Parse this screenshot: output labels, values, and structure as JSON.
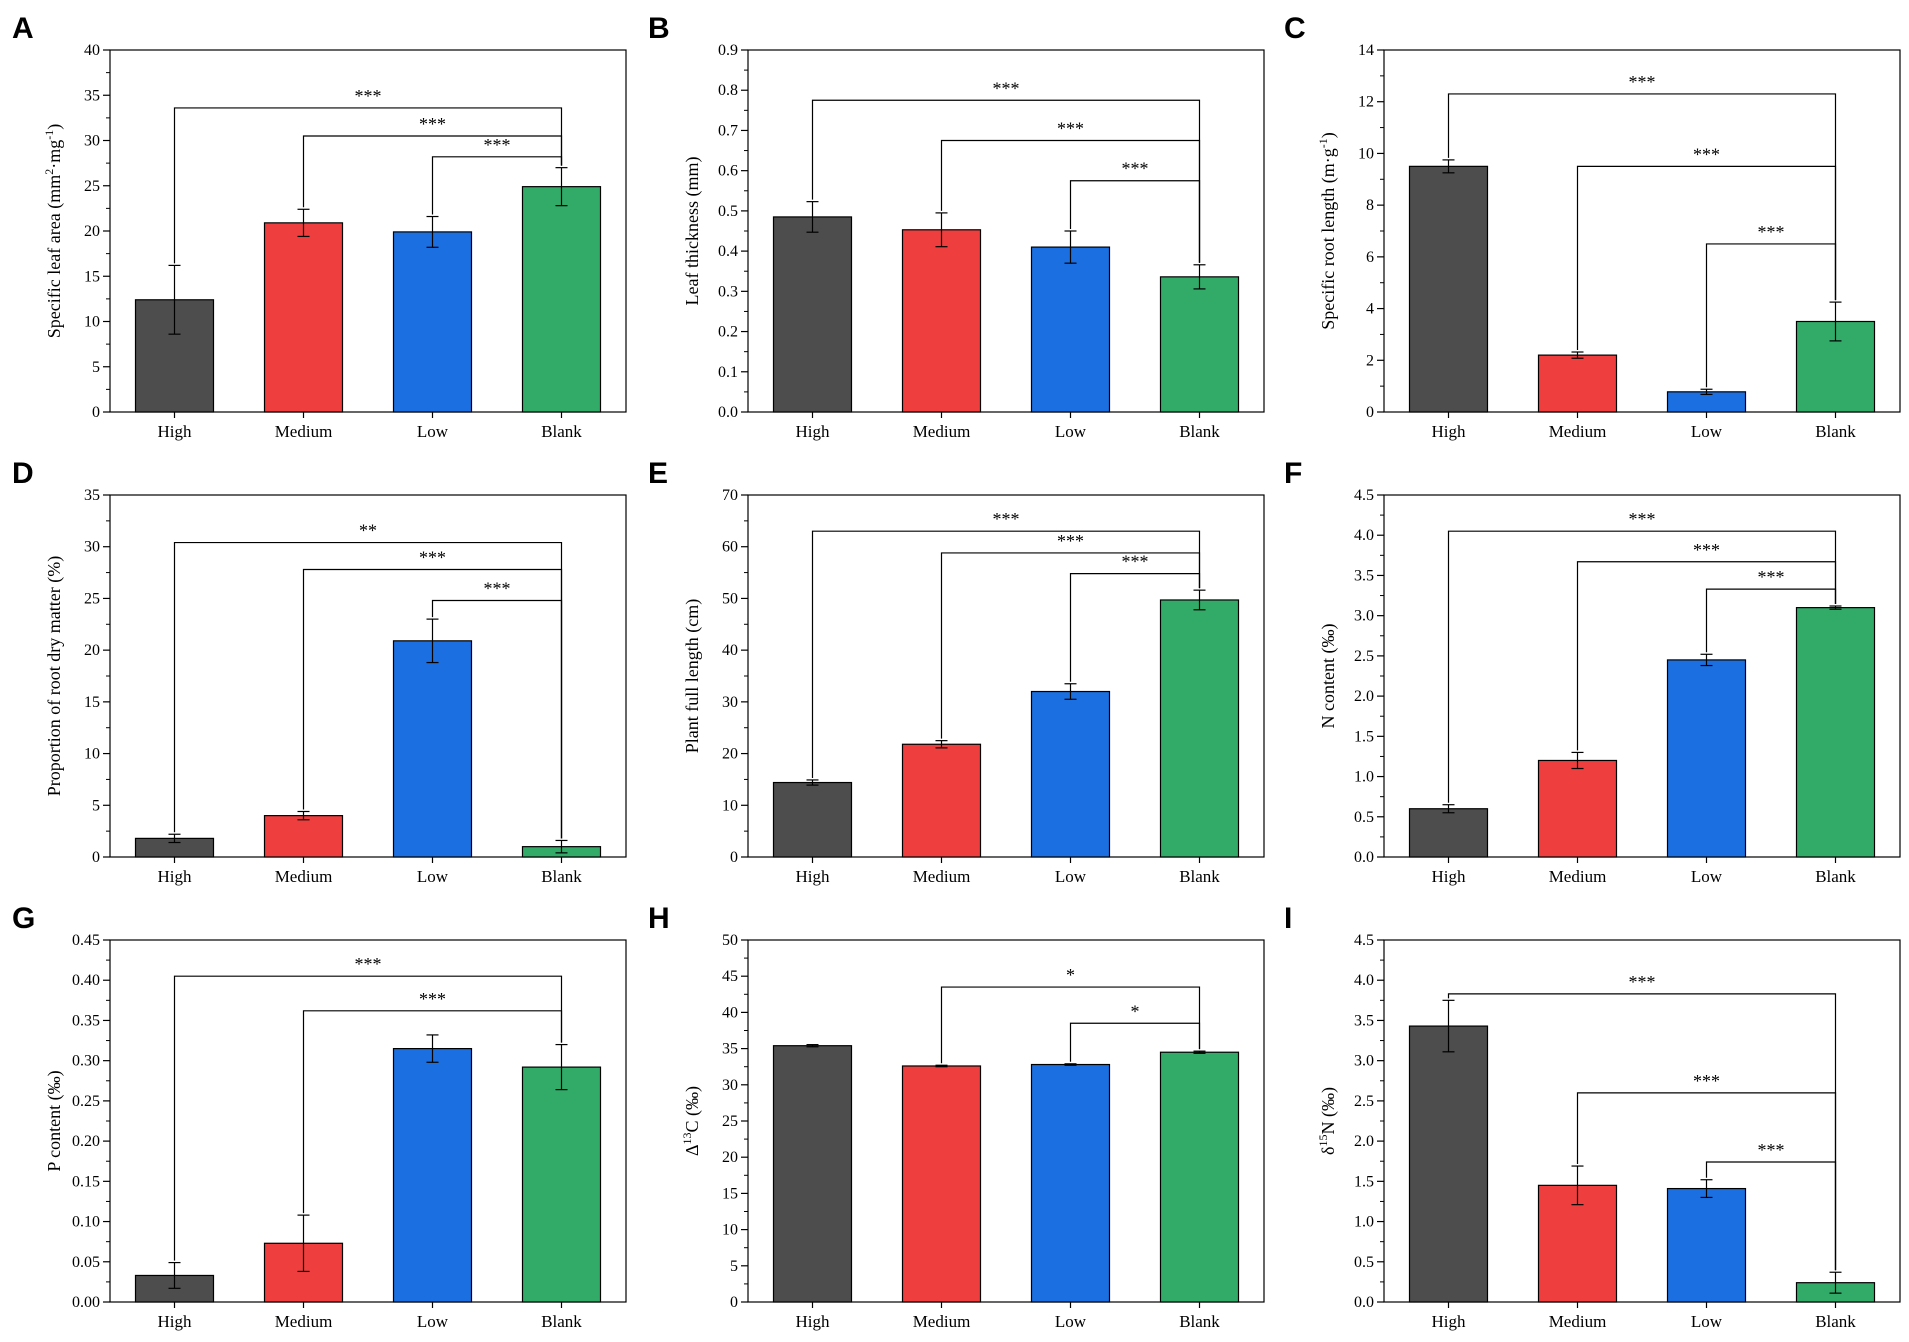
{
  "chart_data": [
    {
      "panel": "A",
      "type": "bar",
      "categories": [
        "High",
        "Medium",
        "Low",
        "Blank"
      ],
      "values": [
        12.4,
        20.9,
        19.9,
        24.9
      ],
      "errors": [
        3.8,
        1.5,
        1.7,
        2.1
      ],
      "ylim": [
        0,
        40
      ],
      "ymajor": 5,
      "ydecimals": 0,
      "ylabel": "Specific leaf area (mm²·mg⁻¹)",
      "ylabel_parts": [
        [
          "Specific leaf area (mm",
          ""
        ],
        [
          "2",
          "sup"
        ],
        [
          "·mg",
          ""
        ],
        [
          "-1",
          "sup"
        ],
        [
          ")",
          ""
        ]
      ],
      "comparisons": [
        {
          "from": 0,
          "to": 3,
          "level": 33.6,
          "label": "***"
        },
        {
          "from": 1,
          "to": 3,
          "level": 30.5,
          "label": "***"
        },
        {
          "from": 2,
          "to": 3,
          "level": 28.2,
          "label": "***"
        }
      ]
    },
    {
      "panel": "B",
      "type": "bar",
      "categories": [
        "High",
        "Medium",
        "Low",
        "Blank"
      ],
      "values": [
        0.485,
        0.453,
        0.41,
        0.336
      ],
      "errors": [
        0.038,
        0.042,
        0.04,
        0.03
      ],
      "ylim": [
        0,
        0.9
      ],
      "ymajor": 0.1,
      "ydecimals": 1,
      "ylabel": "Leaf thickness (mm)",
      "ylabel_parts": [
        [
          "Leaf thickness (mm)",
          ""
        ]
      ],
      "comparisons": [
        {
          "from": 0,
          "to": 3,
          "level": 0.775,
          "label": "***"
        },
        {
          "from": 1,
          "to": 3,
          "level": 0.675,
          "label": "***"
        },
        {
          "from": 2,
          "to": 3,
          "level": 0.575,
          "label": "***"
        }
      ]
    },
    {
      "panel": "C",
      "type": "bar",
      "categories": [
        "High",
        "Medium",
        "Low",
        "Blank"
      ],
      "values": [
        9.5,
        2.2,
        0.78,
        3.5
      ],
      "errors": [
        0.25,
        0.12,
        0.1,
        0.75
      ],
      "ylim": [
        0,
        14
      ],
      "ymajor": 2,
      "ydecimals": 0,
      "ylabel": "Specific root length (m·g⁻¹)",
      "ylabel_parts": [
        [
          "Specific root length (m·g",
          ""
        ],
        [
          "-1",
          "sup"
        ],
        [
          ")",
          ""
        ]
      ],
      "comparisons": [
        {
          "from": 0,
          "to": 3,
          "level": 12.3,
          "label": "***"
        },
        {
          "from": 1,
          "to": 3,
          "level": 9.5,
          "label": "***"
        },
        {
          "from": 2,
          "to": 3,
          "level": 6.5,
          "label": "***"
        }
      ]
    },
    {
      "panel": "D",
      "type": "bar",
      "categories": [
        "High",
        "Medium",
        "Low",
        "Blank"
      ],
      "values": [
        1.8,
        4.0,
        20.9,
        1.0
      ],
      "errors": [
        0.4,
        0.4,
        2.1,
        0.6
      ],
      "ylim": [
        0,
        35
      ],
      "ymajor": 5,
      "ydecimals": 0,
      "ylabel": "Proportion of root dry matter (%)",
      "ylabel_parts": [
        [
          "Proportion of root dry matter (%)",
          ""
        ]
      ],
      "comparisons": [
        {
          "from": 0,
          "to": 3,
          "level": 30.4,
          "label": "**"
        },
        {
          "from": 1,
          "to": 3,
          "level": 27.8,
          "label": "***"
        },
        {
          "from": 2,
          "to": 3,
          "level": 24.8,
          "label": "***"
        }
      ]
    },
    {
      "panel": "E",
      "type": "bar",
      "categories": [
        "High",
        "Medium",
        "Low",
        "Blank"
      ],
      "values": [
        14.4,
        21.8,
        32.0,
        49.7
      ],
      "errors": [
        0.5,
        0.7,
        1.5,
        1.9
      ],
      "ylim": [
        0,
        70
      ],
      "ymajor": 10,
      "ydecimals": 0,
      "ylabel": "Plant full length (cm)",
      "ylabel_parts": [
        [
          "Plant full length (cm)",
          ""
        ]
      ],
      "comparisons": [
        {
          "from": 0,
          "to": 3,
          "level": 63.0,
          "label": "***"
        },
        {
          "from": 1,
          "to": 3,
          "level": 58.8,
          "label": "***"
        },
        {
          "from": 2,
          "to": 3,
          "level": 54.8,
          "label": "***"
        }
      ]
    },
    {
      "panel": "F",
      "type": "bar",
      "categories": [
        "High",
        "Medium",
        "Low",
        "Blank"
      ],
      "values": [
        0.6,
        1.2,
        2.45,
        3.1
      ],
      "errors": [
        0.05,
        0.1,
        0.07,
        0.02
      ],
      "ylim": [
        0,
        4.5
      ],
      "ymajor": 0.5,
      "ydecimals": 1,
      "ylabel": "N content (‰)",
      "ylabel_parts": [
        [
          "N content (‰)",
          ""
        ]
      ],
      "comparisons": [
        {
          "from": 0,
          "to": 3,
          "level": 4.05,
          "label": "***"
        },
        {
          "from": 1,
          "to": 3,
          "level": 3.67,
          "label": "***"
        },
        {
          "from": 2,
          "to": 3,
          "level": 3.33,
          "label": "***"
        }
      ]
    },
    {
      "panel": "G",
      "type": "bar",
      "categories": [
        "High",
        "Medium",
        "Low",
        "Blank"
      ],
      "values": [
        0.033,
        0.073,
        0.315,
        0.292
      ],
      "errors": [
        0.016,
        0.035,
        0.017,
        0.028
      ],
      "ylim": [
        0,
        0.45
      ],
      "ymajor": 0.05,
      "ydecimals": 2,
      "ylabel": "P content (‰)",
      "ylabel_parts": [
        [
          "P content (‰)",
          ""
        ]
      ],
      "comparisons": [
        {
          "from": 0,
          "to": 3,
          "level": 0.405,
          "label": "***"
        },
        {
          "from": 1,
          "to": 3,
          "level": 0.362,
          "label": "***"
        }
      ]
    },
    {
      "panel": "H",
      "type": "bar",
      "categories": [
        "High",
        "Medium",
        "Low",
        "Blank"
      ],
      "values": [
        35.4,
        32.6,
        32.8,
        34.5
      ],
      "errors": [
        0.15,
        0.1,
        0.1,
        0.15
      ],
      "ylim": [
        0,
        50
      ],
      "ymajor": 5,
      "ydecimals": 0,
      "ylabel": "Δ¹³C (‰)",
      "ylabel_parts": [
        [
          "Δ",
          ""
        ],
        [
          "13",
          "sup"
        ],
        [
          "C (‰)",
          ""
        ]
      ],
      "comparisons": [
        {
          "from": 1,
          "to": 3,
          "level": 43.5,
          "label": "*"
        },
        {
          "from": 2,
          "to": 3,
          "level": 38.5,
          "label": "*"
        }
      ]
    },
    {
      "panel": "I",
      "type": "bar",
      "categories": [
        "High",
        "Medium",
        "Low",
        "Blank"
      ],
      "values": [
        3.43,
        1.45,
        1.41,
        0.24
      ],
      "errors": [
        0.32,
        0.24,
        0.11,
        0.13
      ],
      "ylim": [
        0,
        4.5
      ],
      "ymajor": 0.5,
      "ydecimals": 1,
      "ylabel": "δ¹⁵N (‰)",
      "ylabel_parts": [
        [
          "δ",
          ""
        ],
        [
          "15",
          "sup"
        ],
        [
          "N (‰)",
          ""
        ]
      ],
      "comparisons": [
        {
          "from": 0,
          "to": 3,
          "level": 3.83,
          "label": "***"
        },
        {
          "from": 1,
          "to": 3,
          "level": 2.6,
          "label": "***"
        },
        {
          "from": 2,
          "to": 3,
          "level": 1.74,
          "label": "***"
        }
      ]
    }
  ],
  "colors": {
    "series": [
      "#4d4d4d",
      "#ee3e3d",
      "#1b6fe0",
      "#32ab69"
    ],
    "axis": "#000000"
  }
}
